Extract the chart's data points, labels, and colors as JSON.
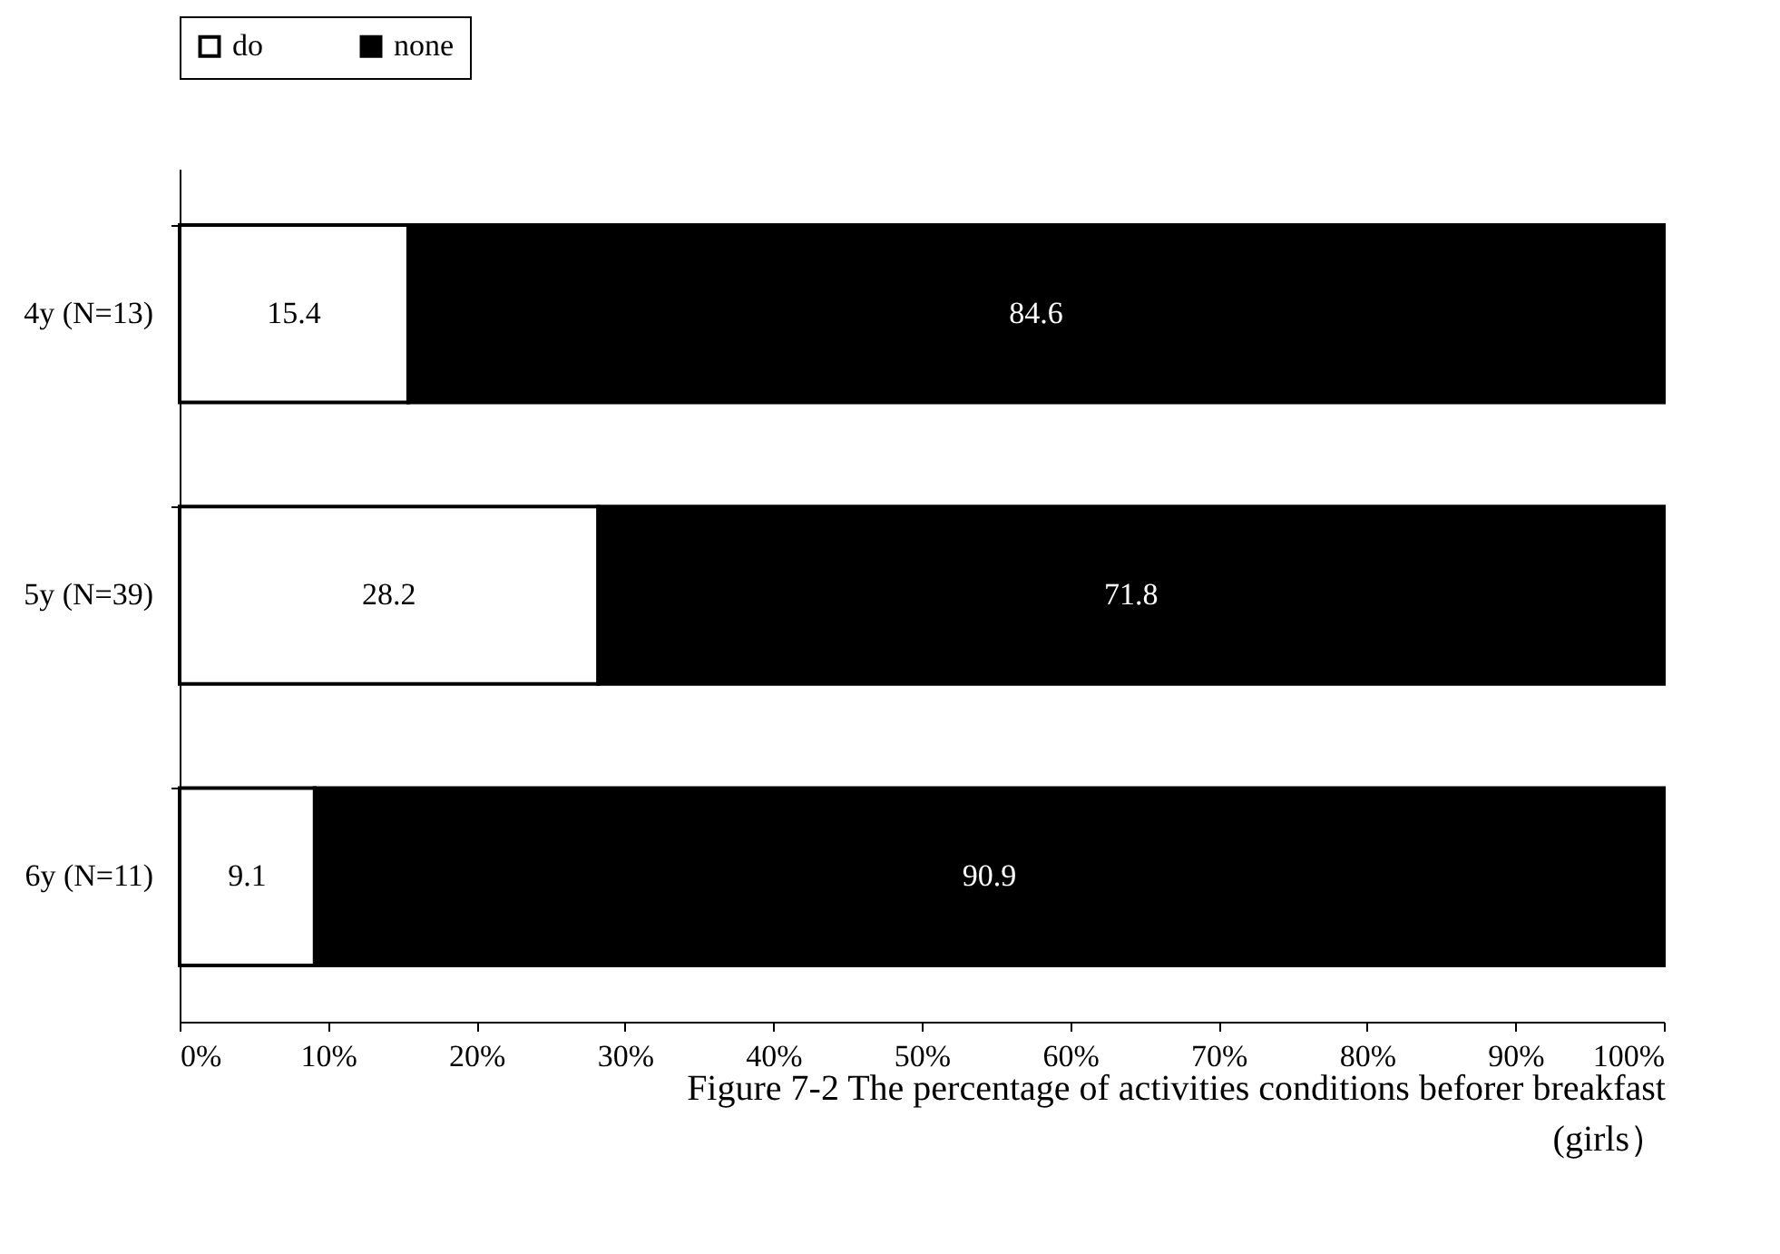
{
  "chart_data": {
    "type": "bar",
    "orientation": "horizontal",
    "stacked": true,
    "title": "Figure 7-2  The percentage of activities conditions beforer breakfast (girls）",
    "categories": [
      "4y (N=13)",
      "5y (N=39)",
      "6y (N=11)"
    ],
    "series": [
      {
        "name": "do",
        "color": "#ffffff",
        "values": [
          15.4,
          28.2,
          9.1
        ]
      },
      {
        "name": "none",
        "color": "#000000",
        "values": [
          84.6,
          71.8,
          90.9
        ]
      }
    ],
    "xlim": [
      0,
      100
    ],
    "xticks": [
      {
        "value": 0,
        "label": "0%"
      },
      {
        "value": 10,
        "label": "10%"
      },
      {
        "value": 20,
        "label": "20%"
      },
      {
        "value": 30,
        "label": "30%"
      },
      {
        "value": 40,
        "label": "40%"
      },
      {
        "value": 50,
        "label": "50%"
      },
      {
        "value": 60,
        "label": "60%"
      },
      {
        "value": 70,
        "label": "70%"
      },
      {
        "value": 80,
        "label": "80%"
      },
      {
        "value": 90,
        "label": "90%"
      },
      {
        "value": 100,
        "label": "100%"
      }
    ],
    "data_labels": true,
    "legend": "top",
    "grid": false
  }
}
